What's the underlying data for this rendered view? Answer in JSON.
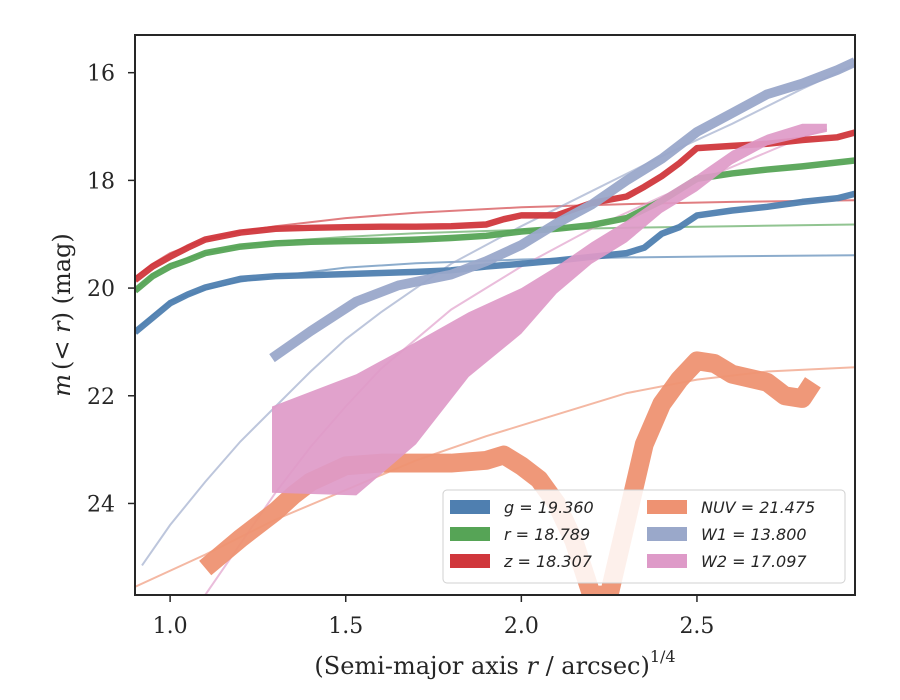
{
  "chart_data": {
    "type": "line",
    "xlabel_main": "(Semi-major axis ",
    "xlabel_var": "r",
    "xlabel_tail": " / arcsec)",
    "xlabel_exp": "1/4",
    "ylabel_main": "m",
    "ylabel_mid": "(< ",
    "ylabel_var": "r",
    "ylabel_tail": ") (mag)",
    "xlim": [
      0.9,
      2.95
    ],
    "ylim": [
      25.7,
      15.3
    ],
    "y_inverted": true,
    "xticks": [
      1.0,
      1.5,
      2.0,
      2.5
    ],
    "xtick_labels": [
      "1.0",
      "1.5",
      "2.0",
      "2.5"
    ],
    "yticks": [
      16,
      18,
      20,
      22,
      24
    ],
    "ytick_labels": [
      "16",
      "18",
      "20",
      "22",
      "24"
    ],
    "grid": false,
    "legend_position": "lower-right",
    "legend": [
      {
        "label": "g = 19.360",
        "color": "#4f7fb0"
      },
      {
        "label": "r = 18.789",
        "color": "#56a456"
      },
      {
        "label": "z = 18.307",
        "color": "#d0373c"
      },
      {
        "label": "NUV = 21.475",
        "color": "#ee9272"
      },
      {
        "label": "W1 = 13.800",
        "color": "#9aa8ca"
      },
      {
        "label": "W2 = 17.097",
        "color": "#de9ac8"
      }
    ],
    "series": [
      {
        "name": "g",
        "color": "#4f7fb0",
        "band_width": 0.12,
        "x": [
          0.9,
          0.95,
          1.0,
          1.05,
          1.1,
          1.2,
          1.3,
          1.4,
          1.5,
          1.6,
          1.7,
          1.8,
          1.9,
          2.0,
          2.1,
          2.2,
          2.3,
          2.35,
          2.4,
          2.45,
          2.5,
          2.6,
          2.7,
          2.8,
          2.9,
          2.95
        ],
        "y": [
          20.82,
          20.55,
          20.28,
          20.12,
          19.99,
          19.83,
          19.78,
          19.76,
          19.74,
          19.72,
          19.7,
          19.67,
          19.6,
          19.55,
          19.49,
          19.42,
          19.35,
          19.25,
          18.99,
          18.87,
          18.65,
          18.56,
          18.49,
          18.4,
          18.33,
          18.25
        ],
        "model_x": [
          0.9,
          0.95,
          1.0,
          1.1,
          1.2,
          1.3,
          1.5,
          1.7,
          2.0,
          2.3,
          2.6,
          2.95
        ],
        "model_y": [
          20.8,
          20.5,
          20.25,
          20.02,
          19.88,
          19.78,
          19.62,
          19.54,
          19.47,
          19.43,
          19.41,
          19.39
        ]
      },
      {
        "name": "r",
        "color": "#56a456",
        "band_width": 0.12,
        "x": [
          0.9,
          0.95,
          1.0,
          1.05,
          1.1,
          1.2,
          1.3,
          1.4,
          1.5,
          1.6,
          1.7,
          1.8,
          1.9,
          2.0,
          2.1,
          2.2,
          2.3,
          2.4,
          2.5,
          2.6,
          2.7,
          2.8,
          2.95
        ],
        "y": [
          20.05,
          19.78,
          19.6,
          19.48,
          19.35,
          19.23,
          19.17,
          19.14,
          19.13,
          19.12,
          19.1,
          19.07,
          19.03,
          18.95,
          18.9,
          18.83,
          18.7,
          18.38,
          17.97,
          17.87,
          17.8,
          17.74,
          17.63
        ],
        "model_x": [
          0.9,
          0.95,
          1.0,
          1.1,
          1.2,
          1.3,
          1.5,
          1.7,
          2.0,
          2.3,
          2.6,
          2.95
        ],
        "model_y": [
          20.05,
          19.75,
          19.55,
          19.35,
          19.22,
          19.14,
          19.05,
          18.98,
          18.92,
          18.88,
          18.85,
          18.82
        ]
      },
      {
        "name": "z",
        "color": "#d0373c",
        "band_width": 0.12,
        "x": [
          0.9,
          0.95,
          1.0,
          1.05,
          1.1,
          1.2,
          1.3,
          1.4,
          1.5,
          1.6,
          1.7,
          1.8,
          1.9,
          1.95,
          2.0,
          2.1,
          2.2,
          2.3,
          2.35,
          2.4,
          2.45,
          2.5,
          2.6,
          2.7,
          2.8,
          2.9,
          2.95
        ],
        "y": [
          19.85,
          19.6,
          19.42,
          19.25,
          19.1,
          18.97,
          18.9,
          18.88,
          18.87,
          18.86,
          18.86,
          18.85,
          18.82,
          18.72,
          18.65,
          18.65,
          18.42,
          18.3,
          18.12,
          17.92,
          17.68,
          17.4,
          17.36,
          17.32,
          17.25,
          17.2,
          17.11
        ],
        "model_x": [
          0.9,
          0.95,
          1.0,
          1.1,
          1.2,
          1.3,
          1.5,
          1.7,
          2.0,
          2.3,
          2.6,
          2.95
        ],
        "model_y": [
          19.8,
          19.55,
          19.35,
          19.1,
          18.95,
          18.85,
          18.7,
          18.6,
          18.5,
          18.44,
          18.4,
          18.37
        ]
      },
      {
        "name": "NUV",
        "color": "#ee9272",
        "band_width": 0.35,
        "x": [
          1.1,
          1.2,
          1.3,
          1.35,
          1.4,
          1.5,
          1.6,
          1.7,
          1.8,
          1.9,
          1.95,
          2.0,
          2.05,
          2.1,
          2.15,
          2.2,
          2.25,
          2.3,
          2.35,
          2.4,
          2.45,
          2.5,
          2.55,
          2.6,
          2.7,
          2.75,
          2.8,
          2.83
        ],
        "y": [
          25.2,
          24.65,
          24.15,
          23.85,
          23.6,
          23.3,
          23.25,
          23.25,
          23.25,
          23.2,
          23.1,
          23.3,
          23.55,
          24.0,
          24.7,
          25.7,
          25.7,
          24.3,
          22.9,
          22.15,
          21.7,
          21.35,
          21.4,
          21.6,
          21.75,
          22.0,
          22.05,
          21.75
        ],
        "model_x": [
          0.9,
          1.1,
          1.3,
          1.5,
          1.7,
          1.9,
          2.1,
          2.3,
          2.5,
          2.7,
          2.95
        ],
        "model_y": [
          25.55,
          24.95,
          24.3,
          23.75,
          23.2,
          22.75,
          22.35,
          21.95,
          21.7,
          21.55,
          21.47
        ]
      },
      {
        "name": "W1",
        "color": "#9aa8ca",
        "band_width": 0.18,
        "x": [
          1.29,
          1.4,
          1.53,
          1.65,
          1.8,
          1.9,
          2.0,
          2.1,
          2.2,
          2.3,
          2.4,
          2.5,
          2.6,
          2.7,
          2.8,
          2.9,
          2.95
        ],
        "y": [
          21.3,
          20.8,
          20.25,
          19.95,
          19.75,
          19.5,
          19.2,
          18.8,
          18.45,
          18.0,
          17.6,
          17.1,
          16.75,
          16.4,
          16.2,
          15.95,
          15.8
        ],
        "model_x": [
          0.92,
          1.0,
          1.1,
          1.2,
          1.3,
          1.4,
          1.5,
          1.6,
          1.8,
          2.0,
          2.2,
          2.4,
          2.6,
          2.8,
          2.95
        ],
        "model_y": [
          25.15,
          24.4,
          23.6,
          22.85,
          22.2,
          21.55,
          20.95,
          20.45,
          19.55,
          18.85,
          18.2,
          17.55,
          16.95,
          16.3,
          15.85
        ]
      },
      {
        "name": "W2",
        "color": "#de9ac8",
        "x": [
          1.29,
          1.53,
          1.7,
          1.85,
          2.0,
          2.1,
          2.2,
          2.3,
          2.4,
          2.5,
          2.6,
          2.7,
          2.8,
          2.87
        ],
        "y_lo": [
          23.8,
          23.85,
          22.9,
          21.65,
          20.85,
          20.1,
          19.55,
          19.15,
          18.6,
          18.2,
          17.7,
          17.35,
          17.2,
          17.1
        ],
        "y_hi": [
          22.2,
          21.6,
          21.0,
          20.45,
          20.0,
          19.6,
          19.15,
          18.75,
          18.3,
          17.9,
          17.45,
          17.15,
          16.95,
          16.95
        ],
        "model_x": [
          1.1,
          1.2,
          1.3,
          1.4,
          1.5,
          1.6,
          1.8,
          2.0,
          2.2,
          2.4,
          2.6,
          2.8,
          2.87
        ],
        "model_y": [
          25.7,
          24.75,
          23.8,
          22.95,
          22.2,
          21.5,
          20.4,
          19.6,
          18.9,
          18.3,
          17.75,
          17.2,
          17.05
        ]
      }
    ]
  }
}
